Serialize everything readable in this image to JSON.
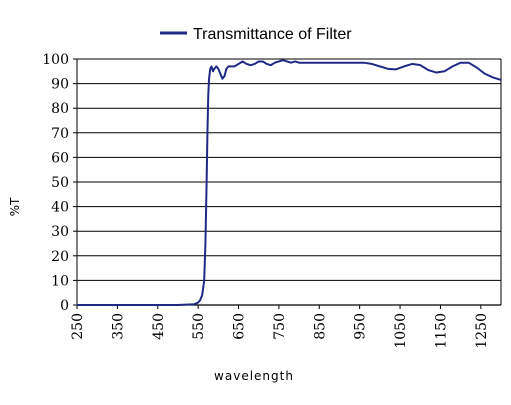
{
  "chart_data": {
    "type": "line",
    "title": "",
    "xlabel": "wavelength",
    "ylabel": "%T",
    "xlim": [
      250,
      1300
    ],
    "ylim": [
      0,
      100
    ],
    "grid": "horizontal",
    "legend_position": "top-center",
    "x_ticks": [
      "250",
      "350",
      "450",
      "550",
      "650",
      "750",
      "850",
      "950",
      "1050",
      "1150",
      "1250"
    ],
    "y_ticks": [
      "0",
      "10",
      "20",
      "30",
      "40",
      "50",
      "60",
      "70",
      "80",
      "90",
      "100"
    ],
    "colors": {
      "series": "#1f2a86",
      "grid": "#000000",
      "axis": "#000000"
    },
    "series": [
      {
        "name": "Transmittance of Filter",
        "x": [
          250,
          300,
          350,
          400,
          450,
          500,
          540,
          550,
          555,
          560,
          565,
          568,
          571,
          573,
          575,
          577,
          580,
          583,
          587,
          590,
          595,
          600,
          605,
          610,
          615,
          620,
          625,
          630,
          640,
          650,
          660,
          670,
          680,
          690,
          700,
          710,
          720,
          730,
          740,
          750,
          760,
          770,
          780,
          790,
          800,
          820,
          840,
          860,
          880,
          900,
          920,
          940,
          960,
          980,
          1000,
          1020,
          1040,
          1060,
          1080,
          1100,
          1120,
          1140,
          1160,
          1180,
          1200,
          1220,
          1240,
          1260,
          1280,
          1300
        ],
        "values": [
          0,
          0,
          0,
          0,
          0,
          0,
          0.3,
          1,
          2,
          4,
          10,
          25,
          50,
          70,
          85,
          92,
          96,
          97,
          95,
          96,
          97,
          96,
          94,
          92,
          93,
          96,
          97,
          97,
          97,
          98,
          99,
          98,
          97.5,
          98,
          99,
          99,
          98,
          97.5,
          98.5,
          99,
          99.5,
          99,
          98.5,
          99,
          98.5,
          98.5,
          98.5,
          98.5,
          98.5,
          98.5,
          98.5,
          98.5,
          98.5,
          98,
          97,
          96,
          95.8,
          97,
          98,
          97.5,
          95.5,
          94.5,
          95,
          97,
          98.5,
          98.5,
          96.5,
          94,
          92.5,
          91.5
        ]
      }
    ]
  }
}
